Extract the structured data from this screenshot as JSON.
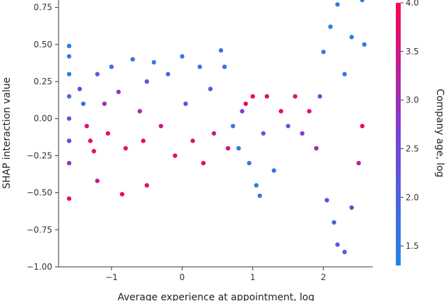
{
  "chart_data": {
    "type": "scatter",
    "title": "",
    "xlabel": "Average experience at appointment, log",
    "ylabel": "SHAP interaction value",
    "xlim": [
      -1.75,
      2.7
    ],
    "ylim": [
      -1.0,
      0.8
    ],
    "x_ticks": [
      -1,
      0,
      1,
      2
    ],
    "x_tick_labels": [
      "−1",
      "0",
      "1",
      "2"
    ],
    "y_ticks": [
      0.75,
      0.5,
      0.25,
      0.0,
      -0.25,
      -0.5,
      -0.75,
      -1.0
    ],
    "y_tick_labels": [
      "0.75",
      "0.50",
      "0.25",
      "0.00",
      "−0.25",
      "−0.50",
      "−0.75",
      "−1.00"
    ],
    "grid": false,
    "colorbar": {
      "label": "Company age, log",
      "range": [
        1.3,
        4.0
      ],
      "ticks": [
        4.0,
        3.5,
        3.0,
        2.5,
        2.0,
        1.5
      ],
      "tick_labels": [
        "4.0",
        "3.5",
        "3.0",
        "2.5",
        "2.0",
        "1.5"
      ],
      "color_low": "#1e88e5",
      "color_mid": "#7b3fd8",
      "color_high": "#ff0052"
    },
    "points": [
      [
        -1.6,
        0.49,
        1.5
      ],
      [
        -1.6,
        0.42,
        1.6
      ],
      [
        -1.6,
        0.3,
        1.5
      ],
      [
        -1.6,
        0.15,
        1.8
      ],
      [
        -1.6,
        0.0,
        2.2
      ],
      [
        -1.6,
        -0.15,
        2.5
      ],
      [
        -1.6,
        -0.3,
        3.0
      ],
      [
        -1.6,
        -0.54,
        3.8
      ],
      [
        -1.45,
        0.2,
        2.4
      ],
      [
        -1.4,
        0.1,
        2.0
      ],
      [
        -1.35,
        -0.05,
        3.6
      ],
      [
        -1.3,
        -0.15,
        3.8
      ],
      [
        -1.25,
        -0.22,
        3.7
      ],
      [
        -1.2,
        0.3,
        2.2
      ],
      [
        -1.2,
        -0.42,
        3.4
      ],
      [
        -1.1,
        0.1,
        3.1
      ],
      [
        -1.05,
        -0.1,
        3.9
      ],
      [
        -1.0,
        0.35,
        1.8
      ],
      [
        -0.9,
        0.18,
        2.8
      ],
      [
        -0.85,
        -0.51,
        3.9
      ],
      [
        -0.8,
        -0.2,
        3.7
      ],
      [
        -0.7,
        0.4,
        1.7
      ],
      [
        -0.6,
        0.05,
        3.2
      ],
      [
        -0.55,
        -0.15,
        3.9
      ],
      [
        -0.5,
        0.25,
        2.4
      ],
      [
        -0.5,
        -0.45,
        3.8
      ],
      [
        -0.4,
        0.38,
        1.6
      ],
      [
        -0.3,
        -0.05,
        3.5
      ],
      [
        -0.2,
        0.3,
        1.9
      ],
      [
        -0.1,
        -0.25,
        3.8
      ],
      [
        0.0,
        0.42,
        1.5
      ],
      [
        0.05,
        0.1,
        2.6
      ],
      [
        0.15,
        -0.15,
        3.6
      ],
      [
        0.25,
        0.35,
        1.7
      ],
      [
        0.3,
        -0.3,
        3.9
      ],
      [
        0.4,
        0.2,
        2.1
      ],
      [
        0.45,
        -0.1,
        3.4
      ],
      [
        0.55,
        0.46,
        1.6
      ],
      [
        0.6,
        0.35,
        1.8
      ],
      [
        0.65,
        -0.2,
        3.7
      ],
      [
        0.72,
        -0.05,
        1.6
      ],
      [
        0.8,
        -0.2,
        1.5
      ],
      [
        0.85,
        0.05,
        2.6
      ],
      [
        0.9,
        0.1,
        3.8
      ],
      [
        0.95,
        -0.3,
        1.6
      ],
      [
        1.0,
        0.15,
        3.9
      ],
      [
        1.05,
        -0.45,
        1.5
      ],
      [
        1.1,
        -0.52,
        1.5
      ],
      [
        1.15,
        -0.1,
        2.2
      ],
      [
        1.2,
        0.15,
        3.7
      ],
      [
        1.3,
        -0.35,
        1.6
      ],
      [
        1.4,
        0.05,
        3.8
      ],
      [
        1.5,
        -0.05,
        2.0
      ],
      [
        1.6,
        0.15,
        3.6
      ],
      [
        1.7,
        -0.1,
        2.8
      ],
      [
        1.8,
        0.05,
        3.7
      ],
      [
        1.9,
        -0.2,
        3.1
      ],
      [
        1.95,
        0.15,
        2.3
      ],
      [
        2.0,
        0.45,
        1.6
      ],
      [
        2.05,
        -0.55,
        2.4
      ],
      [
        2.1,
        0.62,
        1.5
      ],
      [
        2.15,
        -0.7,
        2.0
      ],
      [
        2.2,
        -0.85,
        2.1
      ],
      [
        2.2,
        0.77,
        1.5
      ],
      [
        2.3,
        -0.9,
        2.2
      ],
      [
        2.3,
        0.3,
        1.6
      ],
      [
        2.4,
        -0.6,
        2.8
      ],
      [
        2.4,
        0.55,
        1.5
      ],
      [
        2.5,
        -0.3,
        3.3
      ],
      [
        2.55,
        0.8,
        1.5
      ],
      [
        2.55,
        -0.05,
        3.8
      ],
      [
        2.58,
        0.5,
        1.6
      ]
    ]
  }
}
